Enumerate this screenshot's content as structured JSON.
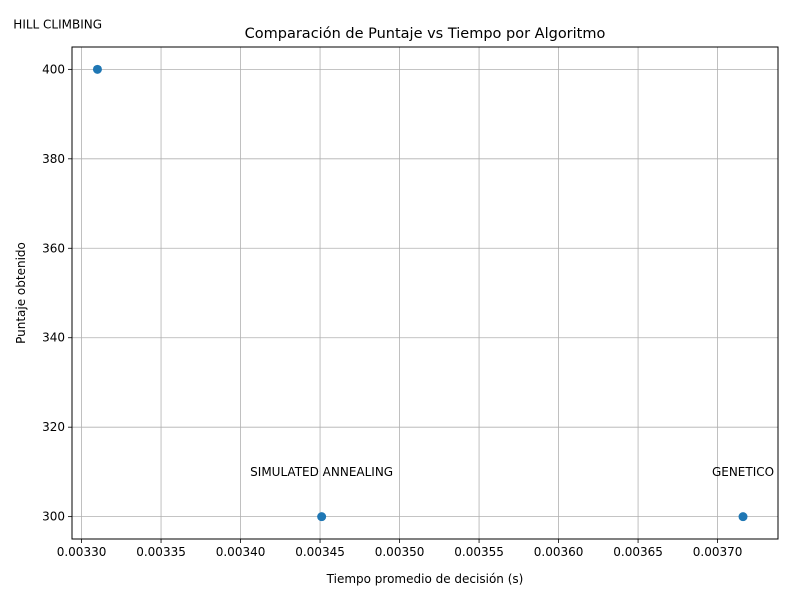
{
  "chart_data": {
    "type": "scatter",
    "title": "Comparación de Puntaje vs Tiempo por Algoritmo",
    "xlabel": "Tiempo promedio de decisión (s)",
    "ylabel": "Puntaje obtenido",
    "xlim": [
      0.003294,
      0.003738
    ],
    "ylim": [
      295,
      405
    ],
    "grid": true,
    "legend": "none",
    "x_ticks": [
      0.0033,
      0.00335,
      0.0034,
      0.00345,
      0.0035,
      0.00355,
      0.0036,
      0.00365,
      0.0037
    ],
    "x_tick_labels": [
      "0.00330",
      "0.00335",
      "0.00340",
      "0.00345",
      "0.00350",
      "0.00355",
      "0.00360",
      "0.00365",
      "0.00370"
    ],
    "y_ticks": [
      300,
      320,
      340,
      360,
      380,
      400
    ],
    "y_tick_labels": [
      "300",
      "320",
      "340",
      "360",
      "380",
      "400"
    ],
    "marker_color": "#1f77b4",
    "grid_color": "#b0b0b0",
    "points": [
      {
        "x": 0.00331,
        "y": 400,
        "label": "HILL CLIMBING"
      },
      {
        "x": 0.003451,
        "y": 300,
        "label": "SIMULATED ANNEALING"
      },
      {
        "x": 0.003716,
        "y": 300,
        "label": "GENETICO"
      }
    ],
    "annotations": [
      {
        "text": "HILL CLIMBING",
        "x": 0.003285,
        "y": 410
      },
      {
        "text": "SIMULATED ANNEALING",
        "x": 0.003451,
        "y": 310
      },
      {
        "text": "GENETICO",
        "x": 0.003716,
        "y": 310
      }
    ]
  }
}
